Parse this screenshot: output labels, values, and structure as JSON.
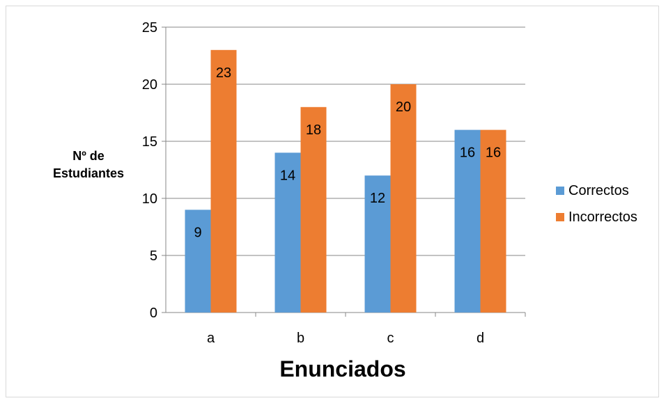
{
  "chart_data": {
    "type": "bar",
    "categories": [
      "a",
      "b",
      "c",
      "d"
    ],
    "series": [
      {
        "name": "Correctos",
        "values": [
          9,
          14,
          12,
          16
        ],
        "color": "#5b9bd5"
      },
      {
        "name": "Incorrectos",
        "values": [
          23,
          18,
          20,
          16
        ],
        "color": "#ed7d31"
      }
    ],
    "title": "",
    "xlabel": "Enunciados",
    "ylabel_line1": "Nº de",
    "ylabel_line2": "Estudiantes",
    "ylim": [
      0,
      25
    ],
    "yticks": [
      0,
      5,
      10,
      15,
      20,
      25
    ],
    "grid": true,
    "legend_position": "right"
  }
}
